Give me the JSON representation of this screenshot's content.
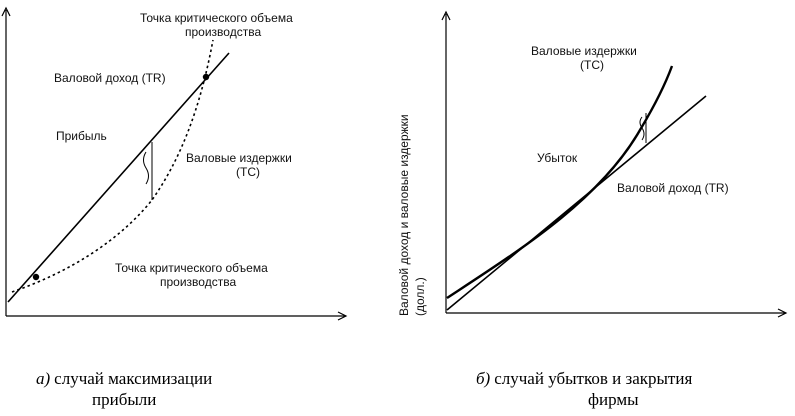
{
  "panel_a": {
    "label_critical_top_1": "Точка критического объема",
    "label_critical_top_2": "производства",
    "label_revenue": "Валовой доход (TR)",
    "label_profit": "Прибыль",
    "label_costs_1": "Валовые издержки",
    "label_costs_2": "(TC)",
    "label_critical_bottom_1": "Точка критического объема",
    "label_critical_bottom_2": "производства",
    "caption_letter": "а)",
    "caption_line1": "случай максимизации",
    "caption_line2": "прибыли"
  },
  "panel_b": {
    "label_costs_1": "Валовые издержки",
    "label_costs_2": "(TC)",
    "label_loss": "Убыток",
    "label_revenue": "Валовой доход (TR)",
    "y_axis_label_1": "Валовой доход и валовые издержки",
    "y_axis_label_2": "(долл.)",
    "caption_letter": "б)",
    "caption_line1": "случай убытков и закрытия",
    "caption_line2": "фирмы"
  }
}
